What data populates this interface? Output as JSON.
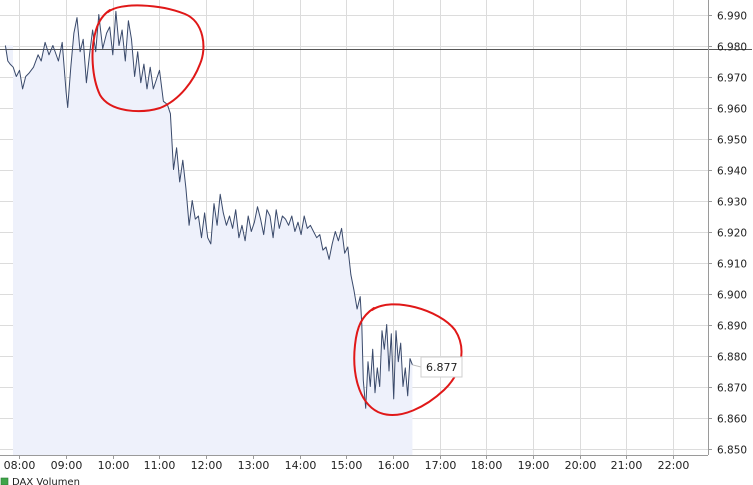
{
  "chart_data": {
    "type": "line",
    "title": "",
    "xlabel": "",
    "ylabel": "",
    "x_ticks": [
      "08:00",
      "09:00",
      "10:00",
      "11:00",
      "12:00",
      "13:00",
      "14:00",
      "15:00",
      "16:00",
      "17:00",
      "18:00",
      "19:00",
      "20:00",
      "21:00",
      "22:00"
    ],
    "y_ticks": [
      "6.990",
      "6.980",
      "6.970",
      "6.960",
      "6.950",
      "6.940",
      "6.930",
      "6.920",
      "6.910",
      "6.900",
      "6.890",
      "6.880",
      "6.870",
      "6.860",
      "6.850"
    ],
    "ylim": [
      6850,
      6993
    ],
    "xlim": [
      "07:35",
      "22:45"
    ],
    "grid": true,
    "reference_line": 6979,
    "last_value_label": "6.877",
    "legend": {
      "label": "DAX Volumen",
      "color": "#3fa54a"
    },
    "annotations": [
      "red-circle-around-10:00-high",
      "red-circle-around-16:00-low"
    ],
    "series": [
      {
        "color": "#3a4a6b",
        "fill": "#eef1fb",
        "points": [
          [
            "07:42",
            6980
          ],
          [
            "07:45",
            6975
          ],
          [
            "07:48",
            6974
          ],
          [
            "07:52",
            6973
          ],
          [
            "07:56",
            6970
          ],
          [
            "08:00",
            6972
          ],
          [
            "08:04",
            6966
          ],
          [
            "08:08",
            6970
          ],
          [
            "08:12",
            6971
          ],
          [
            "08:18",
            6973
          ],
          [
            "08:24",
            6977
          ],
          [
            "08:28",
            6975
          ],
          [
            "08:33",
            6981
          ],
          [
            "08:38",
            6977
          ],
          [
            "08:43",
            6980
          ],
          [
            "08:50",
            6975
          ],
          [
            "08:55",
            6981
          ],
          [
            "09:00",
            6965
          ],
          [
            "09:02",
            6960
          ],
          [
            "09:06",
            6973
          ],
          [
            "09:10",
            6984
          ],
          [
            "09:14",
            6989
          ],
          [
            "09:18",
            6978
          ],
          [
            "09:22",
            6982
          ],
          [
            "09:26",
            6968
          ],
          [
            "09:30",
            6977
          ],
          [
            "09:34",
            6985
          ],
          [
            "09:38",
            6978
          ],
          [
            "09:42",
            6990
          ],
          [
            "09:47",
            6979
          ],
          [
            "09:52",
            6984
          ],
          [
            "09:56",
            6986
          ],
          [
            "10:00",
            6977
          ],
          [
            "10:04",
            6991
          ],
          [
            "10:08",
            6980
          ],
          [
            "10:12",
            6985
          ],
          [
            "10:16",
            6975
          ],
          [
            "10:20",
            6988
          ],
          [
            "10:24",
            6982
          ],
          [
            "10:28",
            6970
          ],
          [
            "10:32",
            6978
          ],
          [
            "10:36",
            6968
          ],
          [
            "10:40",
            6974
          ],
          [
            "10:44",
            6966
          ],
          [
            "10:48",
            6973
          ],
          [
            "10:52",
            6966
          ],
          [
            "10:56",
            6969
          ],
          [
            "11:00",
            6972
          ],
          [
            "11:05",
            6962
          ],
          [
            "11:10",
            6961
          ],
          [
            "11:14",
            6958
          ],
          [
            "11:18",
            6940
          ],
          [
            "11:22",
            6947
          ],
          [
            "11:26",
            6936
          ],
          [
            "11:30",
            6943
          ],
          [
            "11:34",
            6934
          ],
          [
            "11:38",
            6922
          ],
          [
            "11:42",
            6930
          ],
          [
            "11:46",
            6924
          ],
          [
            "11:50",
            6925
          ],
          [
            "11:54",
            6918
          ],
          [
            "11:58",
            6926
          ],
          [
            "12:02",
            6918
          ],
          [
            "12:06",
            6916
          ],
          [
            "12:10",
            6929
          ],
          [
            "12:14",
            6922
          ],
          [
            "12:18",
            6932
          ],
          [
            "12:22",
            6926
          ],
          [
            "12:26",
            6922
          ],
          [
            "12:30",
            6925
          ],
          [
            "12:34",
            6921
          ],
          [
            "12:38",
            6927
          ],
          [
            "12:42",
            6918
          ],
          [
            "12:46",
            6922
          ],
          [
            "12:50",
            6917
          ],
          [
            "12:54",
            6925
          ],
          [
            "12:58",
            6920
          ],
          [
            "13:02",
            6923
          ],
          [
            "13:06",
            6928
          ],
          [
            "13:10",
            6924
          ],
          [
            "13:14",
            6919
          ],
          [
            "13:18",
            6927
          ],
          [
            "13:22",
            6925
          ],
          [
            "13:26",
            6918
          ],
          [
            "13:30",
            6927
          ],
          [
            "13:34",
            6921
          ],
          [
            "13:38",
            6925
          ],
          [
            "13:42",
            6924
          ],
          [
            "13:46",
            6922
          ],
          [
            "13:50",
            6925
          ],
          [
            "13:54",
            6920
          ],
          [
            "13:58",
            6923
          ],
          [
            "14:02",
            6919
          ],
          [
            "14:06",
            6925
          ],
          [
            "14:10",
            6921
          ],
          [
            "14:14",
            6922
          ],
          [
            "14:18",
            6920
          ],
          [
            "14:22",
            6918
          ],
          [
            "14:26",
            6919
          ],
          [
            "14:30",
            6914
          ],
          [
            "14:34",
            6915
          ],
          [
            "14:38",
            6911
          ],
          [
            "14:42",
            6916
          ],
          [
            "14:46",
            6920
          ],
          [
            "14:50",
            6917
          ],
          [
            "14:54",
            6921
          ],
          [
            "14:58",
            6913
          ],
          [
            "15:02",
            6915
          ],
          [
            "15:06",
            6906
          ],
          [
            "15:10",
            6901
          ],
          [
            "15:14",
            6895
          ],
          [
            "15:18",
            6899
          ],
          [
            "15:20",
            6890
          ],
          [
            "15:22",
            6872
          ],
          [
            "15:25",
            6863
          ],
          [
            "15:28",
            6878
          ],
          [
            "15:31",
            6870
          ],
          [
            "15:34",
            6882
          ],
          [
            "15:37",
            6868
          ],
          [
            "15:40",
            6876
          ],
          [
            "15:43",
            6870
          ],
          [
            "15:46",
            6888
          ],
          [
            "15:49",
            6882
          ],
          [
            "15:52",
            6890
          ],
          [
            "15:55",
            6875
          ],
          [
            "15:58",
            6887
          ],
          [
            "16:01",
            6866
          ],
          [
            "16:04",
            6888
          ],
          [
            "16:07",
            6878
          ],
          [
            "16:10",
            6884
          ],
          [
            "16:13",
            6870
          ],
          [
            "16:16",
            6876
          ],
          [
            "16:19",
            6867
          ],
          [
            "16:22",
            6879
          ],
          [
            "16:25",
            6877
          ]
        ]
      }
    ]
  }
}
